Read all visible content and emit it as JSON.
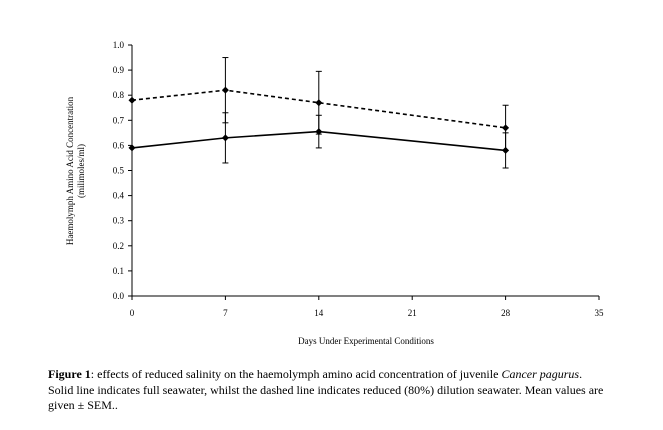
{
  "chart_data": {
    "type": "line",
    "xlabel": "Days Under Experimental Conditions",
    "ylabel_line1": "Haemolymph Amino Acid Concentration",
    "ylabel_line2": "(milimoles/ml)",
    "xlim": [
      0,
      35
    ],
    "ylim": [
      0,
      1.0
    ],
    "x_ticks": [
      "0",
      "7",
      "14",
      "21",
      "28",
      "35"
    ],
    "y_ticks": [
      "0.0",
      "0.1",
      "0.2",
      "0.3",
      "0.4",
      "0.5",
      "0.6",
      "0.7",
      "0.8",
      "0.9",
      "1.0"
    ],
    "grid": false,
    "legend": "none",
    "series": [
      {
        "style": "solid",
        "marker": "diamond",
        "color": "#000000",
        "x": [
          0,
          7,
          14,
          28
        ],
        "y": [
          0.59,
          0.63,
          0.655,
          0.58
        ],
        "err": [
          0.0,
          0.1,
          0.065,
          0.07
        ]
      },
      {
        "style": "dashed",
        "marker": "diamond",
        "color": "#000000",
        "x": [
          0,
          7,
          14,
          28
        ],
        "y": [
          0.78,
          0.82,
          0.77,
          0.67
        ],
        "err": [
          0.0,
          0.13,
          0.125,
          0.09
        ]
      }
    ]
  },
  "caption": {
    "label": "Figure 1",
    "text_before_species": ": effects of reduced salinity on the haemolymph amino acid concentration of juvenile ",
    "species": "Cancer pagurus",
    "text_after_species": ". Solid line indicates full seawater, whilst the dashed line indicates reduced (80%) dilution seawater. Mean values are given ± SEM.."
  }
}
